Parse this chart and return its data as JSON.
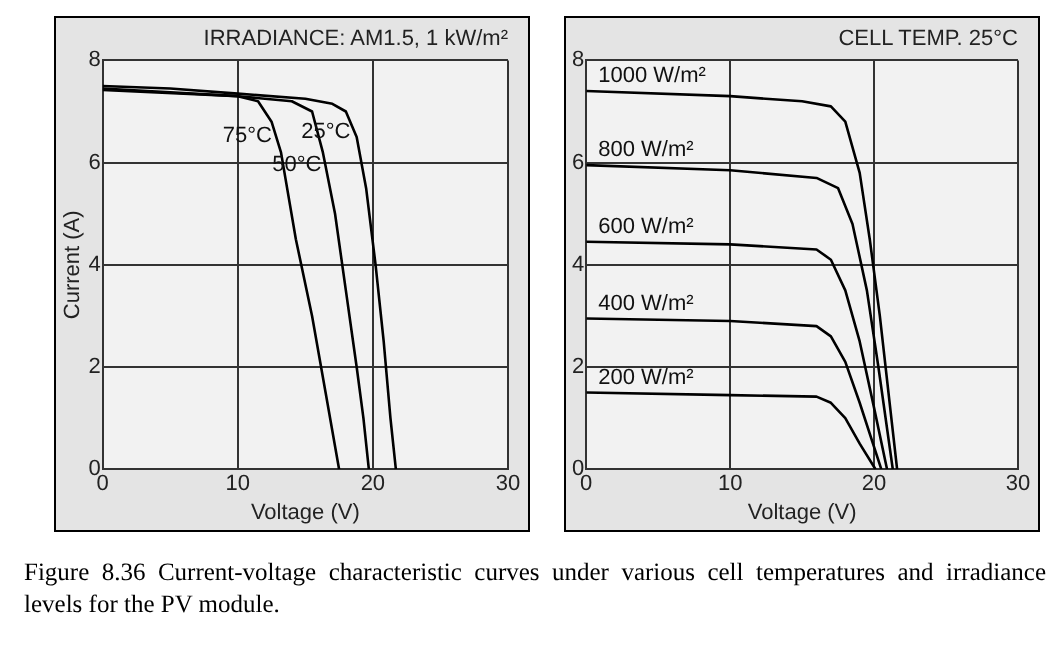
{
  "chart_data": [
    {
      "type": "line",
      "title": "IRRADIANCE: AM1.5, 1 kW/m²",
      "xlabel": "Voltage (V)",
      "ylabel": "Current (A)",
      "xlim": [
        0,
        30
      ],
      "ylim": [
        0,
        8
      ],
      "xticks": [
        0,
        10,
        20,
        30
      ],
      "yticks": [
        0,
        2,
        4,
        6,
        8
      ],
      "grid": true,
      "legend": false,
      "series": [
        {
          "name": "25°C",
          "color": "#000000",
          "x": [
            0,
            5,
            10,
            15,
            17,
            18,
            18.8,
            19.5,
            20.2,
            20.8,
            21.3,
            21.7
          ],
          "values": [
            7.5,
            7.45,
            7.35,
            7.25,
            7.15,
            7.0,
            6.5,
            5.5,
            4,
            2.5,
            1,
            0
          ]
        },
        {
          "name": "50°C",
          "color": "#000000",
          "x": [
            0,
            10,
            14,
            15.5,
            16.3,
            17.2,
            18,
            18.8,
            19.3,
            19.7
          ],
          "values": [
            7.45,
            7.3,
            7.2,
            7.0,
            6.2,
            5,
            3.5,
            2,
            1,
            0
          ]
        },
        {
          "name": "75°C",
          "color": "#000000",
          "x": [
            0,
            10,
            11.5,
            12.5,
            13.2,
            14.3,
            15.5,
            16.5,
            17.5
          ],
          "values": [
            7.42,
            7.3,
            7.2,
            6.8,
            6.2,
            4.5,
            3,
            1.5,
            0
          ]
        }
      ],
      "annotations": [
        "Figure 8.36   Current-voltage characteristic curves under various cell temperatures and irradiance levels for the PV module."
      ]
    },
    {
      "type": "line",
      "title": "CELL TEMP. 25°C",
      "xlabel": "Voltage (V)",
      "xlim": [
        0,
        30
      ],
      "ylim": [
        0,
        8
      ],
      "xticks": [
        0,
        10,
        20,
        30
      ],
      "yticks": [
        0,
        2,
        4,
        6,
        8
      ],
      "grid": true,
      "legend": false,
      "series": [
        {
          "name": "1000 W/m²",
          "color": "#000000",
          "x": [
            0,
            10,
            15,
            17,
            18,
            19,
            19.7,
            20.4,
            21,
            21.6
          ],
          "values": [
            7.4,
            7.3,
            7.2,
            7.1,
            6.8,
            5.8,
            4.5,
            3,
            1.5,
            0
          ]
        },
        {
          "name": "800 W/m²",
          "color": "#000000",
          "x": [
            0,
            10,
            16,
            17.5,
            18.5,
            19.5,
            20.3,
            21.3
          ],
          "values": [
            5.95,
            5.85,
            5.7,
            5.5,
            4.8,
            3.5,
            2,
            0
          ]
        },
        {
          "name": "600 W/m²",
          "color": "#000000",
          "x": [
            0,
            10,
            16,
            17,
            18,
            19,
            20,
            20.9
          ],
          "values": [
            4.45,
            4.4,
            4.3,
            4.1,
            3.5,
            2.5,
            1.2,
            0
          ]
        },
        {
          "name": "400 W/m²",
          "color": "#000000",
          "x": [
            0,
            10,
            16,
            17,
            18,
            19,
            20.5
          ],
          "values": [
            2.95,
            2.9,
            2.8,
            2.6,
            2.1,
            1.3,
            0
          ]
        },
        {
          "name": "200 W/m²",
          "color": "#000000",
          "x": [
            0,
            10,
            16,
            17,
            18,
            19,
            20.1
          ],
          "values": [
            1.5,
            1.45,
            1.42,
            1.3,
            1.0,
            0.5,
            0
          ]
        }
      ]
    }
  ]
}
